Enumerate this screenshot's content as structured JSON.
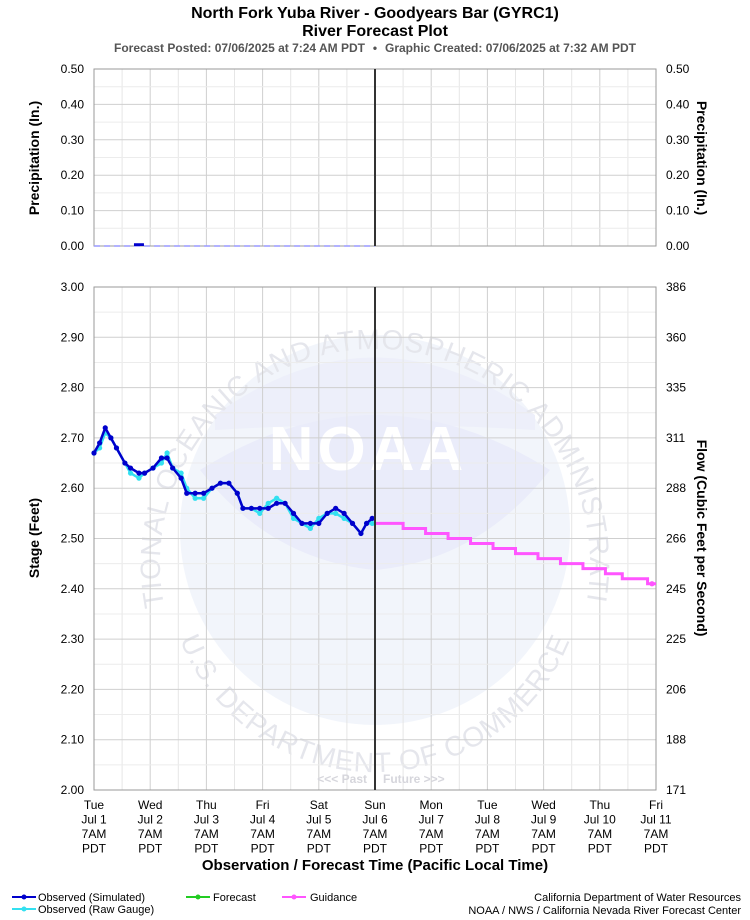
{
  "header": {
    "title": "North Fork Yuba River - Goodyears Bar (GYRC1)",
    "subtitle": "River Forecast Plot",
    "posted": "Forecast Posted: 07/06/2025 at 7:24 AM PDT",
    "separator": "•",
    "created": "Graphic Created: 07/06/2025 at 7:32 AM PDT"
  },
  "watermark": {
    "arc_top": "NATIONAL OCEANIC AND ATMOSPHERIC ADMINISTRATION",
    "arc_bottom": "U.S. DEPARTMENT OF COMMERCE",
    "center": "NOAA"
  },
  "past_future": {
    "past": "<<< Past",
    "future": "Future >>>"
  },
  "xaxis": {
    "title": "Observation / Forecast Time (Pacific Local Time)",
    "ticks": [
      {
        "day": "Tue",
        "date": "Jul 1",
        "time": "7AM",
        "tz": "PDT"
      },
      {
        "day": "Wed",
        "date": "Jul 2",
        "time": "7AM",
        "tz": "PDT"
      },
      {
        "day": "Thu",
        "date": "Jul 3",
        "time": "7AM",
        "tz": "PDT"
      },
      {
        "day": "Fri",
        "date": "Jul 4",
        "time": "7AM",
        "tz": "PDT"
      },
      {
        "day": "Sat",
        "date": "Jul 5",
        "time": "7AM",
        "tz": "PDT"
      },
      {
        "day": "Sun",
        "date": "Jul 6",
        "time": "7AM",
        "tz": "PDT"
      },
      {
        "day": "Mon",
        "date": "Jul 7",
        "time": "7AM",
        "tz": "PDT"
      },
      {
        "day": "Tue",
        "date": "Jul 8",
        "time": "7AM",
        "tz": "PDT"
      },
      {
        "day": "Wed",
        "date": "Jul 9",
        "time": "7AM",
        "tz": "PDT"
      },
      {
        "day": "Thu",
        "date": "Jul 10",
        "time": "7AM",
        "tz": "PDT"
      },
      {
        "day": "Fri",
        "date": "Jul 11",
        "time": "7AM",
        "tz": "PDT"
      }
    ]
  },
  "legend": {
    "items": [
      {
        "label": "Observed (Simulated)",
        "color": "#0000cc"
      },
      {
        "label": "Observed (Raw Gauge)",
        "color": "#33e0f0"
      },
      {
        "label": "Forecast",
        "color": "#22cc22"
      },
      {
        "label": "Guidance",
        "color": "#ff55ff"
      }
    ]
  },
  "credits": {
    "line1": "California Department of Water Resources",
    "line2": "NOAA / NWS / California Nevada River Forecast Center"
  },
  "chart_data": [
    {
      "type": "bar",
      "name": "precipitation",
      "ylabel_left": "Precipitation (In.)",
      "ylabel_right": "Precipitation (In.)",
      "ylim": [
        0,
        0.5
      ],
      "yticks": [
        "0.50",
        "0.40",
        "0.30",
        "0.20",
        "0.10",
        "0.00"
      ],
      "grid": true,
      "bars": [
        {
          "day": 0.8,
          "value": 0.005
        }
      ],
      "color": "#0000cc"
    },
    {
      "type": "line",
      "name": "stage-flow",
      "ylabel_left": "Stage (Feet)",
      "ylabel_right": "Flow (Cubic Feet per Second)",
      "ylim": [
        2.0,
        3.0
      ],
      "yticks_left": [
        "3.00",
        "2.90",
        "2.80",
        "2.70",
        "2.60",
        "2.50",
        "2.40",
        "2.30",
        "2.20",
        "2.10",
        "2.00"
      ],
      "yticks_right": [
        "386",
        "360",
        "335",
        "311",
        "288",
        "266",
        "245",
        "225",
        "206",
        "188",
        "171"
      ],
      "x_unit": "days from Tue Jul 1 7AM PDT",
      "xlim": [
        0,
        10
      ],
      "now": 5,
      "grid": true,
      "series": [
        {
          "name": "Observed (Raw Gauge)",
          "color": "#33e0f0",
          "points": [
            [
              0,
              2.67
            ],
            [
              0.1,
              2.68
            ],
            [
              0.2,
              2.71
            ],
            [
              0.3,
              2.7
            ],
            [
              0.4,
              2.68
            ],
            [
              0.55,
              2.65
            ],
            [
              0.65,
              2.63
            ],
            [
              0.8,
              2.62
            ],
            [
              0.9,
              2.63
            ],
            [
              1.05,
              2.64
            ],
            [
              1.2,
              2.65
            ],
            [
              1.3,
              2.67
            ],
            [
              1.4,
              2.64
            ],
            [
              1.55,
              2.63
            ],
            [
              1.65,
              2.6
            ],
            [
              1.8,
              2.58
            ],
            [
              1.95,
              2.58
            ],
            [
              2.1,
              2.6
            ],
            [
              2.25,
              2.61
            ],
            [
              2.4,
              2.61
            ],
            [
              2.55,
              2.59
            ],
            [
              2.65,
              2.56
            ],
            [
              2.8,
              2.56
            ],
            [
              2.95,
              2.55
            ],
            [
              3.1,
              2.57
            ],
            [
              3.25,
              2.58
            ],
            [
              3.4,
              2.57
            ],
            [
              3.55,
              2.54
            ],
            [
              3.7,
              2.53
            ],
            [
              3.85,
              2.52
            ],
            [
              4.0,
              2.54
            ],
            [
              4.15,
              2.55
            ],
            [
              4.3,
              2.55
            ],
            [
              4.45,
              2.54
            ],
            [
              4.6,
              2.53
            ],
            [
              4.75,
              2.51
            ],
            [
              4.85,
              2.53
            ],
            [
              4.95,
              2.53
            ]
          ]
        },
        {
          "name": "Observed (Simulated)",
          "color": "#0000cc",
          "points": [
            [
              0,
              2.67
            ],
            [
              0.1,
              2.69
            ],
            [
              0.2,
              2.72
            ],
            [
              0.3,
              2.7
            ],
            [
              0.4,
              2.68
            ],
            [
              0.55,
              2.65
            ],
            [
              0.65,
              2.64
            ],
            [
              0.8,
              2.63
            ],
            [
              0.9,
              2.63
            ],
            [
              1.05,
              2.64
            ],
            [
              1.2,
              2.66
            ],
            [
              1.3,
              2.66
            ],
            [
              1.4,
              2.64
            ],
            [
              1.55,
              2.62
            ],
            [
              1.65,
              2.59
            ],
            [
              1.8,
              2.59
            ],
            [
              1.95,
              2.59
            ],
            [
              2.1,
              2.6
            ],
            [
              2.25,
              2.61
            ],
            [
              2.4,
              2.61
            ],
            [
              2.55,
              2.59
            ],
            [
              2.65,
              2.56
            ],
            [
              2.8,
              2.56
            ],
            [
              2.95,
              2.56
            ],
            [
              3.1,
              2.56
            ],
            [
              3.25,
              2.57
            ],
            [
              3.4,
              2.57
            ],
            [
              3.55,
              2.55
            ],
            [
              3.7,
              2.53
            ],
            [
              3.85,
              2.53
            ],
            [
              4.0,
              2.53
            ],
            [
              4.15,
              2.55
            ],
            [
              4.3,
              2.56
            ],
            [
              4.45,
              2.55
            ],
            [
              4.6,
              2.53
            ],
            [
              4.75,
              2.51
            ],
            [
              4.85,
              2.53
            ],
            [
              4.95,
              2.54
            ]
          ]
        },
        {
          "name": "Guidance",
          "color": "#ff55ff",
          "steps": [
            [
              5.0,
              5.25,
              2.53
            ],
            [
              5.25,
              5.5,
              2.53
            ],
            [
              5.5,
              5.9,
              2.52
            ],
            [
              5.9,
              6.3,
              2.51
            ],
            [
              6.3,
              6.7,
              2.5
            ],
            [
              6.7,
              7.1,
              2.49
            ],
            [
              7.1,
              7.5,
              2.48
            ],
            [
              7.5,
              7.9,
              2.47
            ],
            [
              7.9,
              8.3,
              2.46
            ],
            [
              8.3,
              8.7,
              2.45
            ],
            [
              8.7,
              9.1,
              2.44
            ],
            [
              9.1,
              9.4,
              2.43
            ],
            [
              9.4,
              9.85,
              2.42
            ],
            [
              9.85,
              10.0,
              2.41
            ]
          ]
        }
      ]
    }
  ]
}
